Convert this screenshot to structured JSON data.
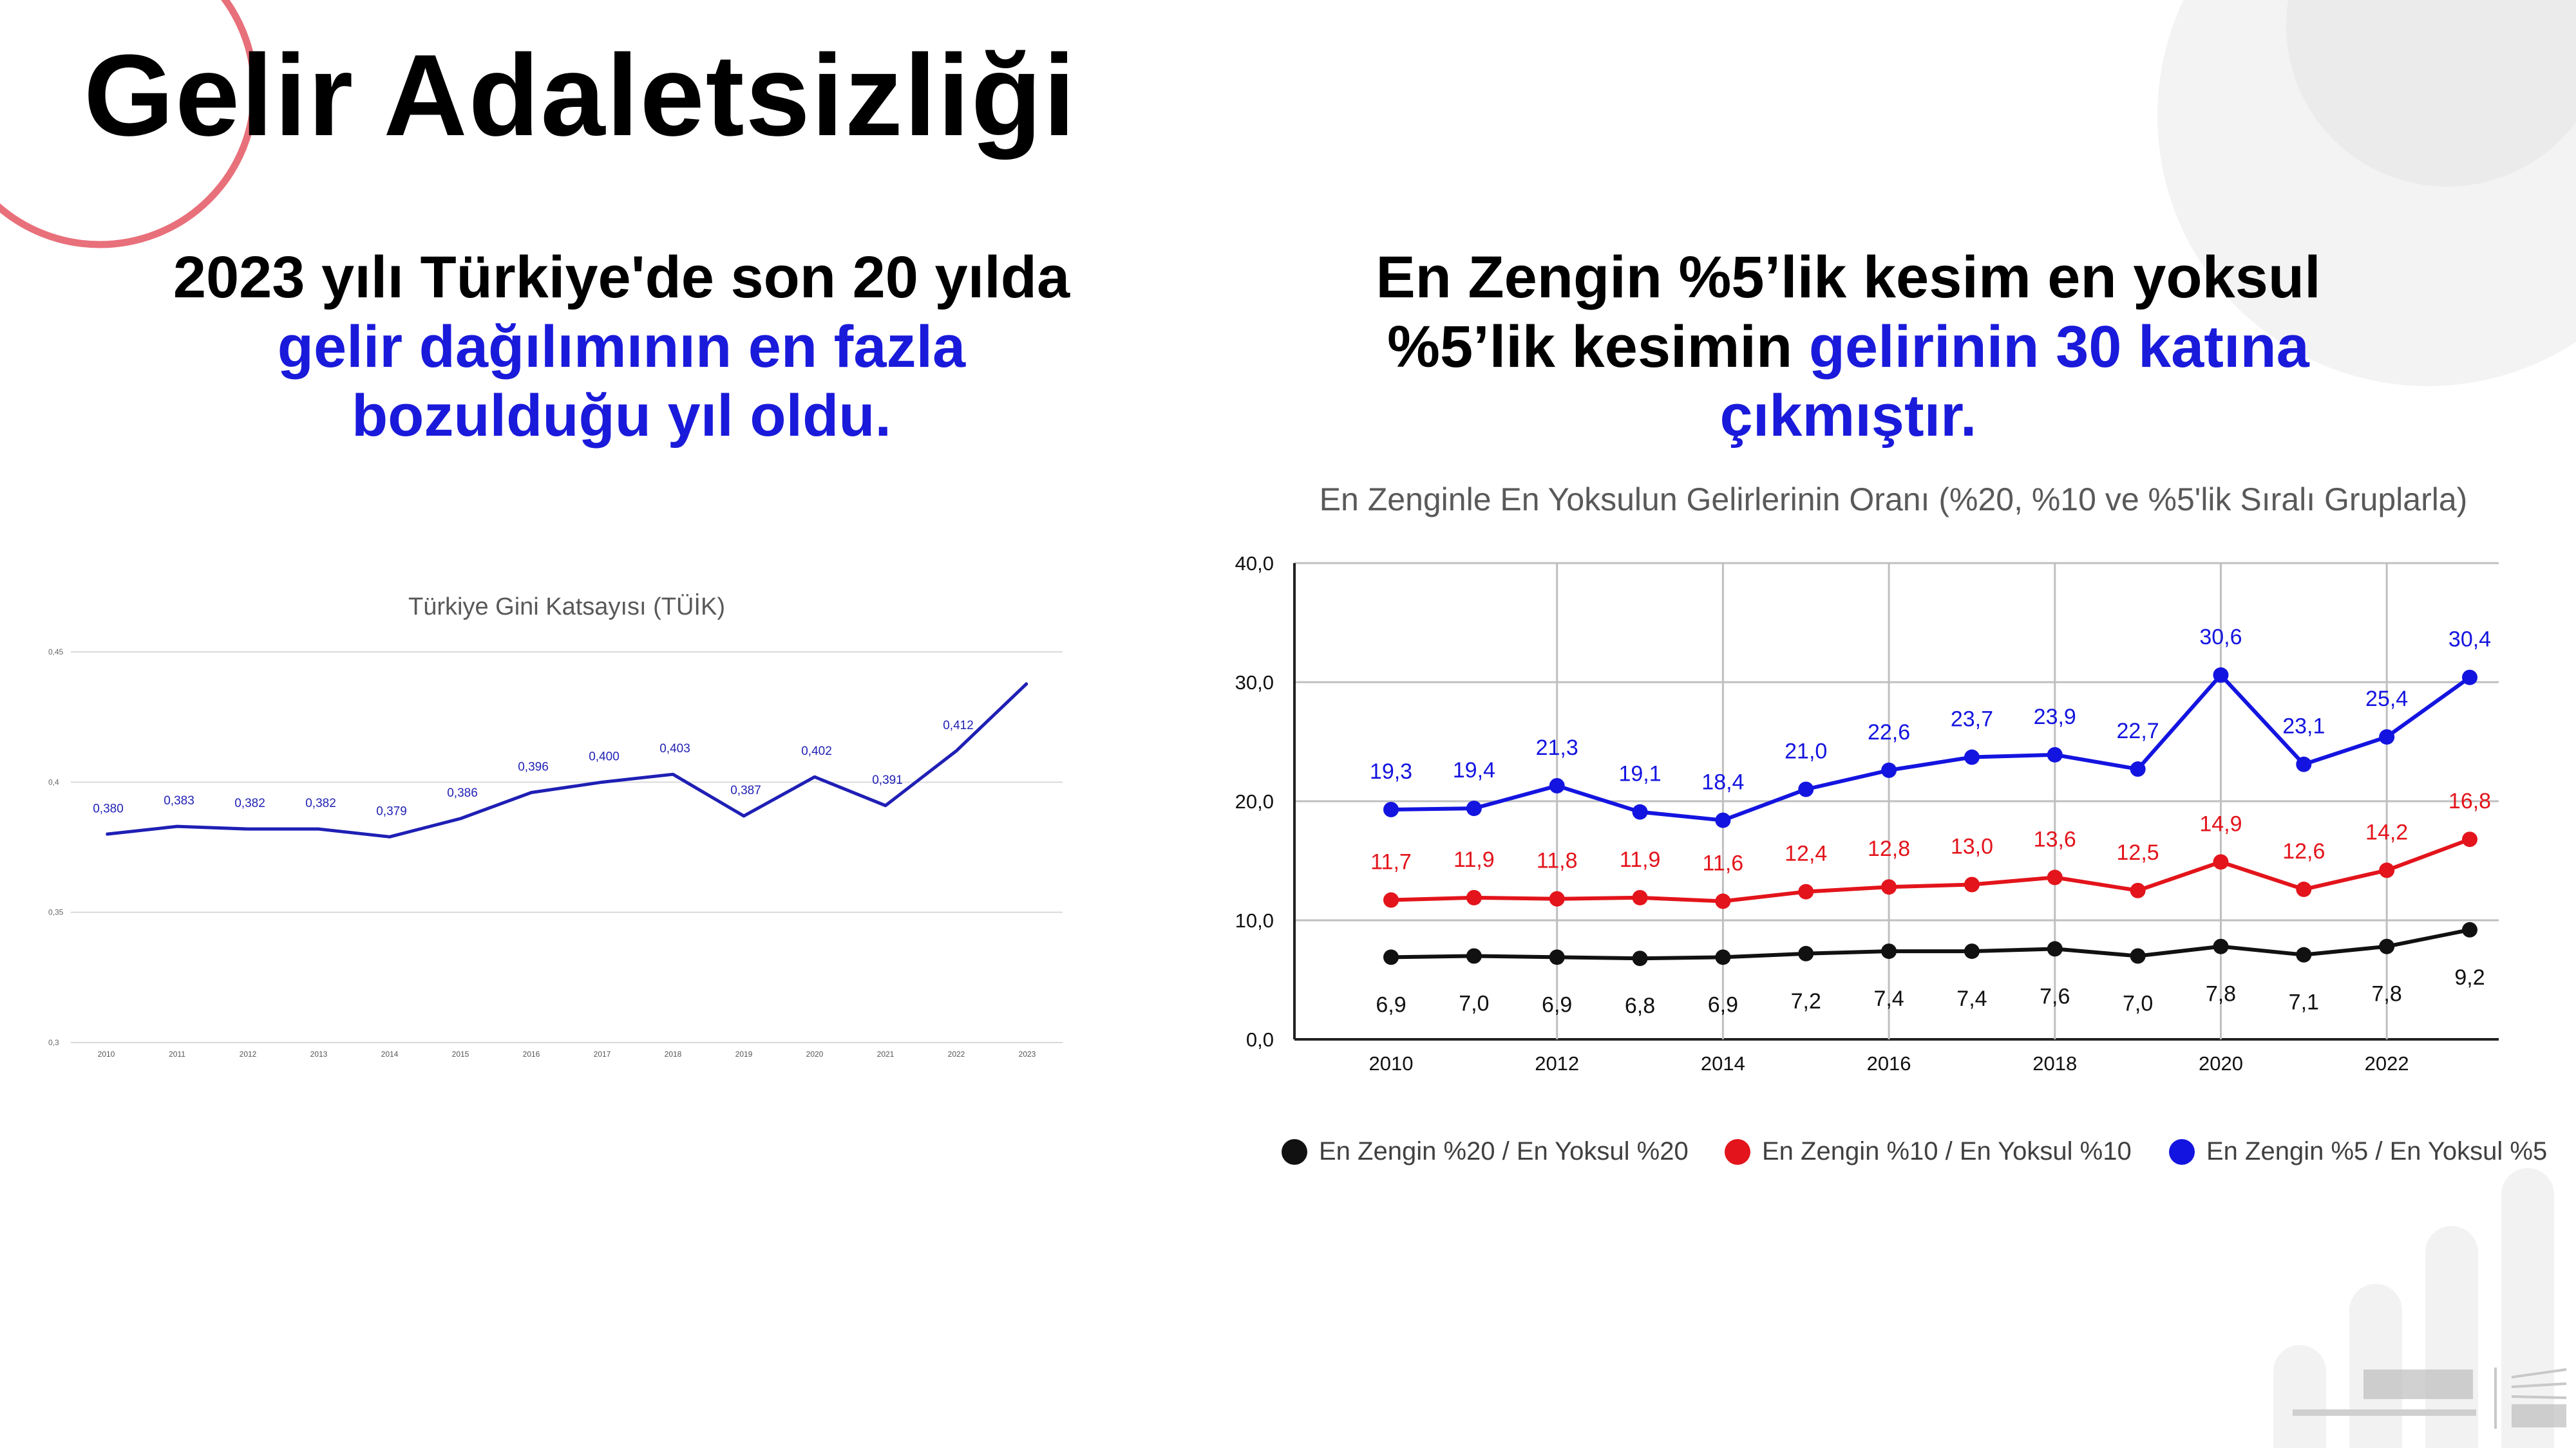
{
  "slide": {
    "title": "Gelir Adaletsizliği",
    "left_text": {
      "plain": "2023 yılı Türkiye'de son 20 yılda",
      "highlight_line1": "gelir dağılımının en fazla",
      "highlight_line2": "bozulduğu yıl oldu."
    },
    "right_text": {
      "line1": "En Zengin %5’lik kesim en yoksul",
      "line2_plain": "%5’lik kesimin ",
      "line2_highlight": "gelirinin 30 katına",
      "line3_highlight": "çıkmıştır."
    },
    "colors": {
      "highlight": "#1a1adb",
      "accent_circle": "#e8707a",
      "decor_gray": "#f1f1f1"
    }
  },
  "chart_data": [
    {
      "type": "line",
      "title": "Türkiye Gini Katsayısı (TÜİK)",
      "xlabel": "",
      "ylabel": "",
      "x": [
        "2010",
        "2011",
        "2012",
        "2013",
        "2014",
        "2015",
        "2016",
        "2017",
        "2018",
        "2019",
        "2020",
        "2021",
        "2022",
        "2023"
      ],
      "ylim": [
        0.3,
        0.45
      ],
      "yticks": [
        "0,3",
        "0,35",
        "0,4",
        "0,45"
      ],
      "grid": true,
      "series": [
        {
          "color": "#1f1fb5",
          "values": [
            0.38,
            0.383,
            0.382,
            0.382,
            0.379,
            0.386,
            0.396,
            0.4,
            0.403,
            0.387,
            0.402,
            0.391,
            0.412,
            0.438
          ],
          "labels": [
            "0,380",
            "0,383",
            "0,382",
            "0,382",
            "0,379",
            "0,386",
            "0,396",
            "0,400",
            "0,403",
            "0,387",
            "0,402",
            "0,391",
            "0,412",
            ""
          ]
        }
      ]
    },
    {
      "type": "line",
      "title": "En Zenginle En Yoksulun Gelirlerinin Oranı (%20, %10 ve %5'lik Sıralı Gruplarla)",
      "xlabel": "",
      "ylabel": "",
      "x": [
        2010,
        2011,
        2012,
        2013,
        2014,
        2015,
        2016,
        2017,
        2018,
        2019,
        2020,
        2021,
        2022,
        2023
      ],
      "xticks": [
        "2010",
        "2012",
        "2014",
        "2016",
        "2018",
        "2020",
        "2022"
      ],
      "ylim": [
        0,
        40
      ],
      "yticks": [
        "0,0",
        "10,0",
        "20,0",
        "30,0",
        "40,0"
      ],
      "grid": true,
      "legend": "bottom",
      "series": [
        {
          "name": "En Zengin %20 / En Yoksul %20",
          "color": "#111111",
          "values": [
            6.9,
            7.0,
            6.9,
            6.8,
            6.9,
            7.2,
            7.4,
            7.4,
            7.6,
            7.0,
            7.8,
            7.1,
            7.8,
            9.2
          ],
          "labels": [
            "6,9",
            "7,0",
            "6,9",
            "6,8",
            "6,9",
            "7,2",
            "7,4",
            "7,4",
            "7,6",
            "7,0",
            "7,8",
            "7,1",
            "7,8",
            "9,2"
          ]
        },
        {
          "name": "En Zengin %10 / En Yoksul %10",
          "color": "#e3141b",
          "values": [
            11.7,
            11.9,
            11.8,
            11.9,
            11.6,
            12.4,
            12.8,
            13.0,
            13.6,
            12.5,
            14.9,
            12.6,
            14.2,
            16.8
          ],
          "labels": [
            "11,7",
            "11,9",
            "11,8",
            "11,9",
            "11,6",
            "12,4",
            "12,8",
            "13,0",
            "13,6",
            "12,5",
            "14,9",
            "12,6",
            "14,2",
            "16,8"
          ]
        },
        {
          "name": "En Zengin %5 / En Yoksul %5",
          "color": "#1414e0",
          "values": [
            19.3,
            19.4,
            21.3,
            19.1,
            18.4,
            21.0,
            22.6,
            23.7,
            23.9,
            22.7,
            30.6,
            23.1,
            25.4,
            30.4
          ],
          "labels": [
            "19,3",
            "19,4",
            "21,3",
            "19,1",
            "18,4",
            "21,0",
            "22,6",
            "23,7",
            "23,9",
            "22,7",
            "30,6",
            "23,1",
            "25,4",
            "30,4"
          ]
        }
      ]
    }
  ]
}
